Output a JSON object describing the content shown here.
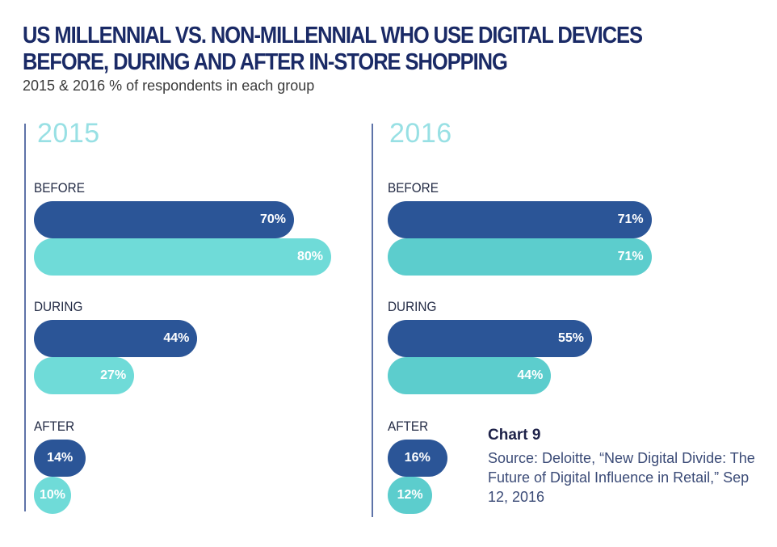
{
  "title": "US MILLENNIAL VS. NON-MILLENNIAL WHO USE DIGITAL DEVICES BEFORE, DURING AND AFTER IN-STORE SHOPPING",
  "subtitle": "2015 & 2016 % of respondents in each group",
  "note": {
    "title": "Chart 9",
    "source": "Source: Deloitte, “New Digital Divide: The Future of Digital Influence in Retail,” Sep 12, 2016"
  },
  "colors": {
    "millennial": "#2b5597",
    "non_millennial_2015": "#6fdbd8",
    "non_millennial_2016": "#5ccdcd",
    "year_label": "#98e0e4",
    "title": "#1a2a66"
  },
  "chart_data": [
    {
      "type": "bar",
      "orientation": "horizontal",
      "title": "2015",
      "categories": [
        "BEFORE",
        "DURING",
        "AFTER"
      ],
      "series": [
        {
          "values": [
            70,
            44,
            14
          ],
          "labels": [
            "70%",
            "44%",
            "14%"
          ],
          "color": "#2b5597"
        },
        {
          "values": [
            80,
            27,
            10
          ],
          "labels": [
            "80%",
            "27%",
            "10%"
          ],
          "color": "#6fdbd8"
        }
      ],
      "unit": "%",
      "legend": "none",
      "grid": false
    },
    {
      "type": "bar",
      "orientation": "horizontal",
      "title": "2016",
      "categories": [
        "BEFORE",
        "DURING",
        "AFTER"
      ],
      "series": [
        {
          "values": [
            71,
            55,
            16
          ],
          "labels": [
            "71%",
            "55%",
            "16%"
          ],
          "color": "#2b5597"
        },
        {
          "values": [
            71,
            44,
            12
          ],
          "labels": [
            "71%",
            "44%",
            "12%"
          ],
          "color": "#5ccdcd"
        }
      ],
      "unit": "%",
      "legend": "none",
      "grid": false
    }
  ]
}
